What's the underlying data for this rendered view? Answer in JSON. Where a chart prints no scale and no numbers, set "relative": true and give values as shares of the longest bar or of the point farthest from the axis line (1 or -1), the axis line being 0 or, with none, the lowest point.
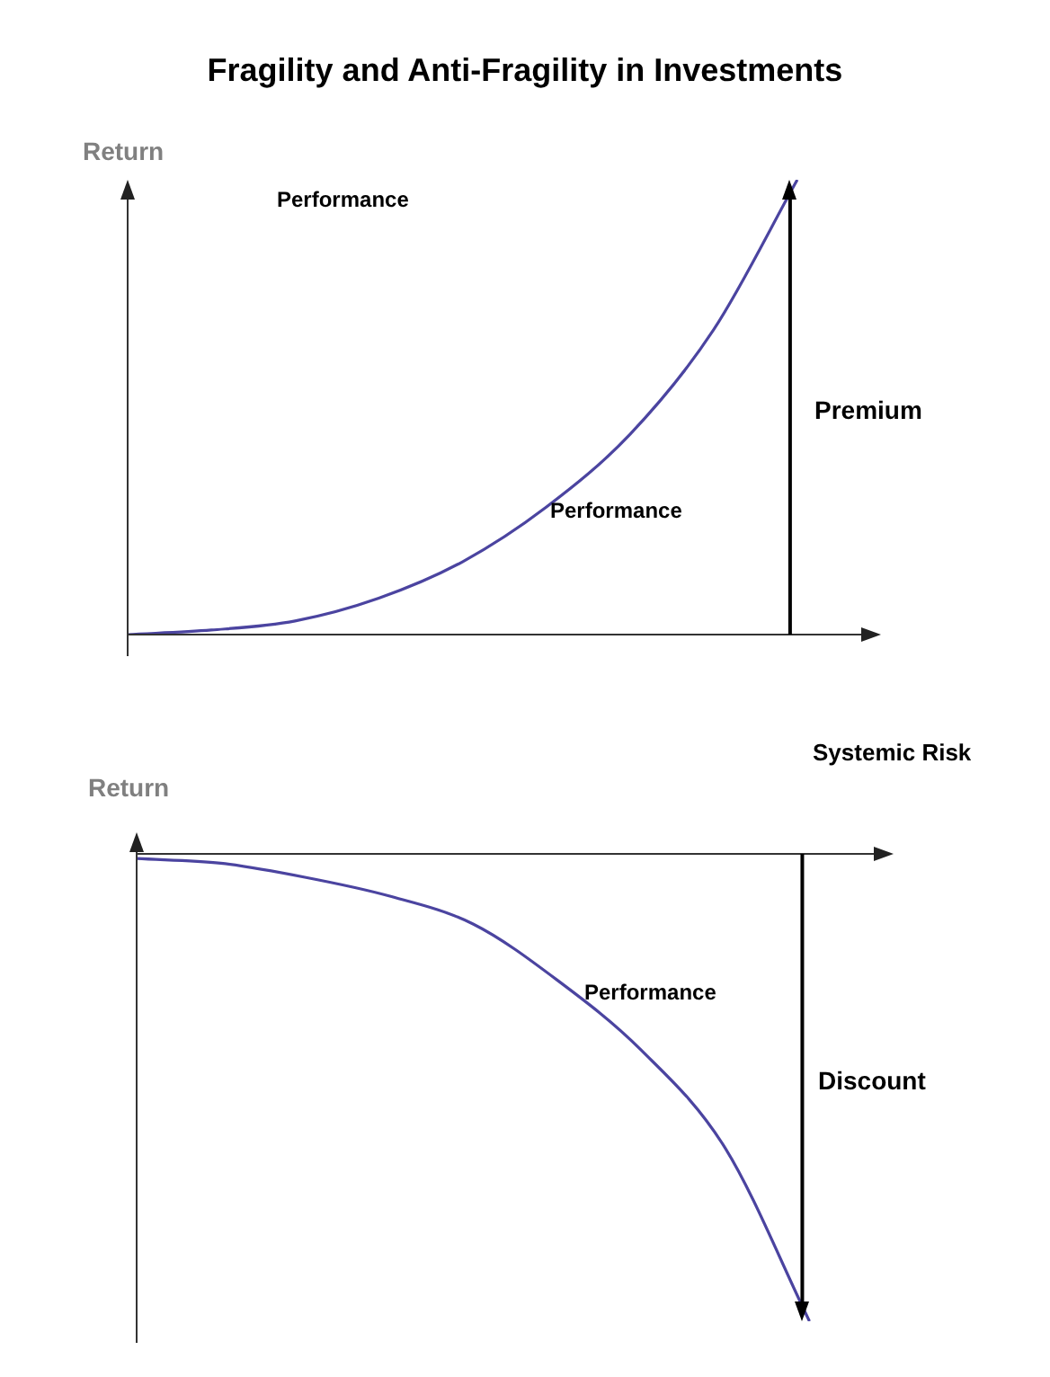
{
  "chart_data": [
    {
      "type": "line",
      "title": "Fragility and Anti-Fragility in Investments",
      "ylabel": "Return",
      "xlabel": "Systemic Risk",
      "relative": true,
      "tick_labels": false,
      "marker": "none",
      "categories": [
        null,
        null,
        null,
        null,
        null,
        null,
        null,
        null,
        null,
        null
      ],
      "series": [
        {
          "color": "#4b44a0",
          "values": [
            0,
            0.01,
            0.03,
            0.08,
            0.16,
            0.28,
            0.44,
            0.67,
            1,
            null
          ]
        }
      ],
      "annotations": [
        "Performance",
        "Performance",
        "Premium"
      ]
    },
    {
      "type": "line",
      "ylabel": "Return",
      "relative": true,
      "tick_labels": false,
      "marker": "none",
      "categories": [
        null,
        null,
        null,
        null,
        null,
        null,
        null,
        null,
        null,
        null
      ],
      "series": [
        {
          "color": "#4b44a0",
          "values": [
            -0.01,
            -0.02,
            -0.05,
            -0.09,
            -0.15,
            -0.27,
            -0.42,
            -0.63,
            -1,
            null
          ]
        }
      ],
      "annotations": [
        "Performance",
        "Discount"
      ]
    }
  ]
}
